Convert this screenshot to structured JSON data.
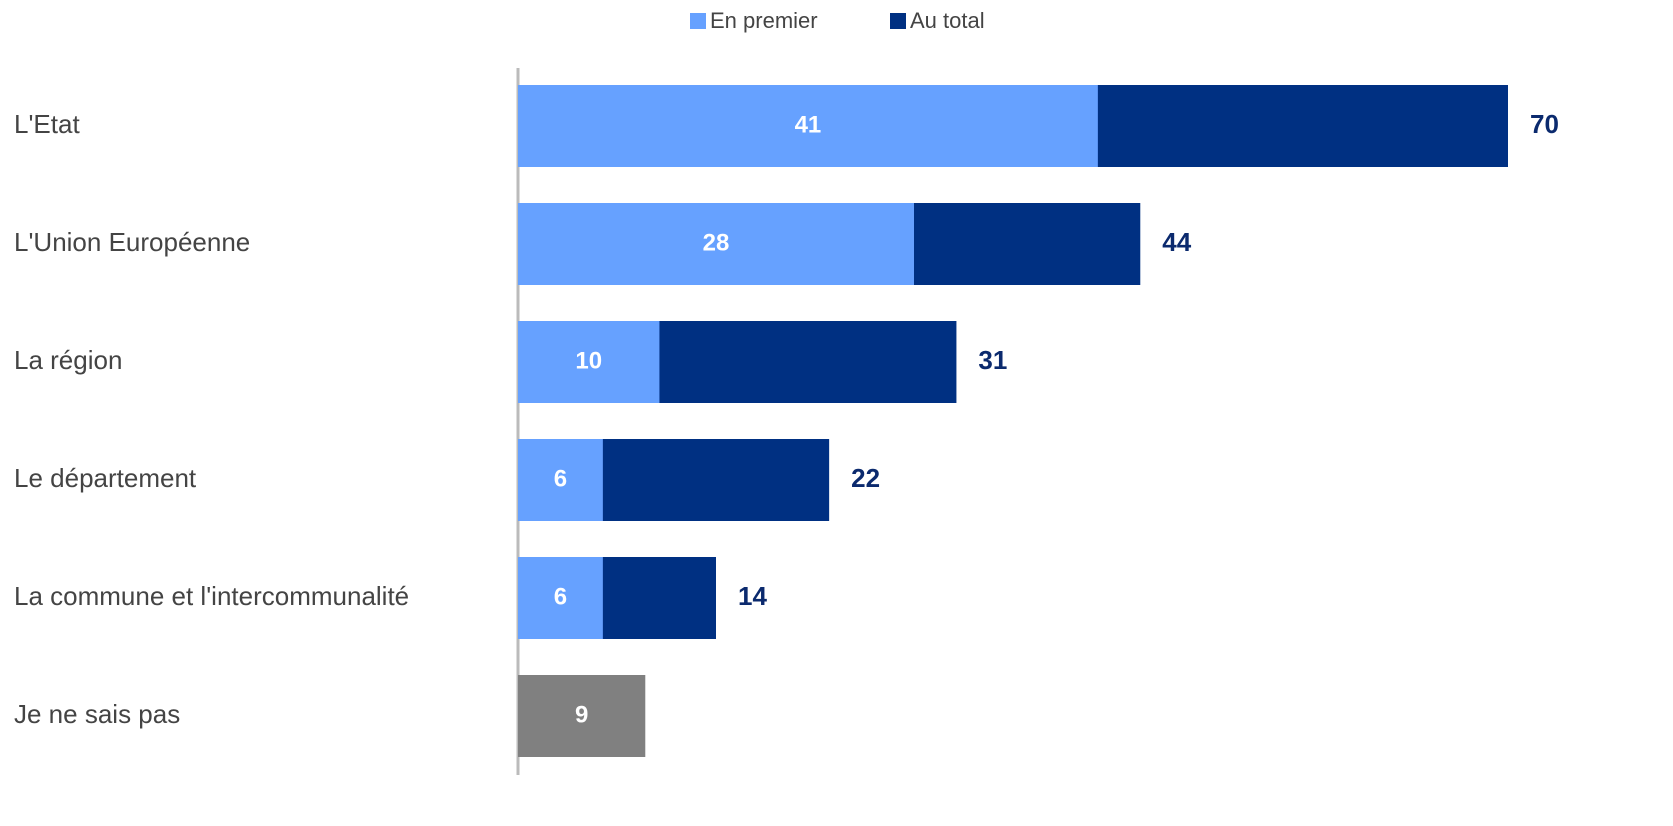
{
  "chart_data": {
    "type": "bar",
    "orientation": "horizontal",
    "categories": [
      "L'Etat",
      "L'Union Européenne",
      "La région",
      "Le département",
      "La commune et l'intercommunalité",
      "Je ne sais pas"
    ],
    "series": [
      {
        "name": "Au total",
        "color": "#003082",
        "values": [
          70,
          44,
          31,
          22,
          14,
          null
        ]
      },
      {
        "name": "En premier",
        "color": "#66a1ff",
        "values": [
          41,
          28,
          10,
          6,
          6,
          null
        ]
      },
      {
        "color": "#808080",
        "values": [
          null,
          null,
          null,
          null,
          null,
          9
        ]
      }
    ],
    "xlim": [
      0,
      70
    ]
  }
}
